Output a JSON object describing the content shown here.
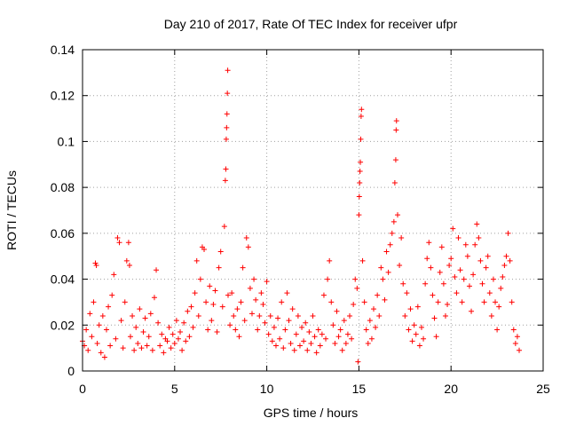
{
  "chart_data": {
    "type": "scatter",
    "title": "Day 210 of 2017, Rate Of TEC Index for receiver ufpr",
    "xlabel": "GPS time / hours",
    "ylabel": "ROTI / TECUs",
    "xlim": [
      0,
      25
    ],
    "ylim": [
      0,
      0.14
    ],
    "x_ticks": [
      0,
      5,
      10,
      15,
      20,
      25
    ],
    "x_tick_labels": [
      "0",
      "5",
      "10",
      "15",
      "20",
      "25"
    ],
    "y_ticks": [
      0,
      0.02,
      0.04,
      0.06,
      0.08,
      0.1,
      0.12,
      0.14
    ],
    "y_tick_labels": [
      "0",
      "0.02",
      "0.04",
      "0.06",
      "0.08",
      "0.1",
      "0.12",
      "0.14"
    ],
    "grid": true,
    "marker": "+",
    "color": "#ff0000",
    "series": [
      {
        "name": "ROTI",
        "points": [
          [
            0.0,
            0.013
          ],
          [
            0.1,
            0.011
          ],
          [
            0.2,
            0.018
          ],
          [
            0.3,
            0.009
          ],
          [
            0.4,
            0.025
          ],
          [
            0.5,
            0.015
          ],
          [
            0.6,
            0.03
          ],
          [
            0.7,
            0.047
          ],
          [
            0.75,
            0.046
          ],
          [
            0.8,
            0.012
          ],
          [
            0.9,
            0.02
          ],
          [
            1.0,
            0.008
          ],
          [
            1.1,
            0.024
          ],
          [
            1.2,
            0.006
          ],
          [
            1.3,
            0.018
          ],
          [
            1.4,
            0.028
          ],
          [
            1.5,
            0.011
          ],
          [
            1.6,
            0.033
          ],
          [
            1.7,
            0.042
          ],
          [
            1.8,
            0.014
          ],
          [
            1.9,
            0.058
          ],
          [
            2.0,
            0.056
          ],
          [
            2.1,
            0.022
          ],
          [
            2.2,
            0.01
          ],
          [
            2.3,
            0.03
          ],
          [
            2.4,
            0.048
          ],
          [
            2.5,
            0.056
          ],
          [
            2.55,
            0.046
          ],
          [
            2.6,
            0.015
          ],
          [
            2.7,
            0.024
          ],
          [
            2.8,
            0.009
          ],
          [
            2.9,
            0.019
          ],
          [
            3.0,
            0.012
          ],
          [
            3.1,
            0.027
          ],
          [
            3.2,
            0.01
          ],
          [
            3.3,
            0.017
          ],
          [
            3.4,
            0.023
          ],
          [
            3.5,
            0.011
          ],
          [
            3.6,
            0.015
          ],
          [
            3.7,
            0.025
          ],
          [
            3.8,
            0.009
          ],
          [
            3.9,
            0.032
          ],
          [
            4.0,
            0.044
          ],
          [
            4.1,
            0.021
          ],
          [
            4.2,
            0.011
          ],
          [
            4.3,
            0.016
          ],
          [
            4.4,
            0.008
          ],
          [
            4.5,
            0.014
          ],
          [
            4.6,
            0.013
          ],
          [
            4.7,
            0.019
          ],
          [
            4.8,
            0.01
          ],
          [
            4.9,
            0.016
          ],
          [
            5.0,
            0.012
          ],
          [
            5.1,
            0.022
          ],
          [
            5.2,
            0.014
          ],
          [
            5.3,
            0.017
          ],
          [
            5.4,
            0.009
          ],
          [
            5.5,
            0.021
          ],
          [
            5.6,
            0.013
          ],
          [
            5.7,
            0.026
          ],
          [
            5.8,
            0.015
          ],
          [
            5.9,
            0.028
          ],
          [
            6.0,
            0.019
          ],
          [
            6.1,
            0.034
          ],
          [
            6.2,
            0.048
          ],
          [
            6.3,
            0.024
          ],
          [
            6.4,
            0.04
          ],
          [
            6.5,
            0.054
          ],
          [
            6.6,
            0.053
          ],
          [
            6.7,
            0.03
          ],
          [
            6.8,
            0.018
          ],
          [
            6.9,
            0.037
          ],
          [
            7.0,
            0.022
          ],
          [
            7.1,
            0.029
          ],
          [
            7.2,
            0.035
          ],
          [
            7.3,
            0.017
          ],
          [
            7.4,
            0.045
          ],
          [
            7.5,
            0.052
          ],
          [
            7.6,
            0.028
          ],
          [
            7.7,
            0.063
          ],
          [
            7.75,
            0.083
          ],
          [
            7.78,
            0.088
          ],
          [
            7.8,
            0.101
          ],
          [
            7.82,
            0.106
          ],
          [
            7.84,
            0.112
          ],
          [
            7.86,
            0.121
          ],
          [
            7.88,
            0.131
          ],
          [
            7.9,
            0.033
          ],
          [
            8.0,
            0.02
          ],
          [
            8.1,
            0.034
          ],
          [
            8.2,
            0.024
          ],
          [
            8.3,
            0.018
          ],
          [
            8.4,
            0.027
          ],
          [
            8.5,
            0.015
          ],
          [
            8.6,
            0.03
          ],
          [
            8.7,
            0.045
          ],
          [
            8.8,
            0.022
          ],
          [
            8.9,
            0.058
          ],
          [
            9.0,
            0.054
          ],
          [
            9.1,
            0.036
          ],
          [
            9.2,
            0.025
          ],
          [
            9.3,
            0.04
          ],
          [
            9.4,
            0.031
          ],
          [
            9.5,
            0.018
          ],
          [
            9.6,
            0.024
          ],
          [
            9.7,
            0.034
          ],
          [
            9.8,
            0.029
          ],
          [
            9.9,
            0.021
          ],
          [
            10.0,
            0.039
          ],
          [
            10.1,
            0.016
          ],
          [
            10.2,
            0.024
          ],
          [
            10.3,
            0.013
          ],
          [
            10.4,
            0.019
          ],
          [
            10.5,
            0.011
          ],
          [
            10.6,
            0.023
          ],
          [
            10.7,
            0.014
          ],
          [
            10.8,
            0.03
          ],
          [
            10.9,
            0.01
          ],
          [
            11.0,
            0.018
          ],
          [
            11.1,
            0.034
          ],
          [
            11.2,
            0.022
          ],
          [
            11.3,
            0.012
          ],
          [
            11.4,
            0.027
          ],
          [
            11.5,
            0.009
          ],
          [
            11.6,
            0.016
          ],
          [
            11.7,
            0.024
          ],
          [
            11.8,
            0.011
          ],
          [
            11.9,
            0.019
          ],
          [
            12.0,
            0.013
          ],
          [
            12.1,
            0.021
          ],
          [
            12.2,
            0.009
          ],
          [
            12.3,
            0.017
          ],
          [
            12.4,
            0.012
          ],
          [
            12.5,
            0.024
          ],
          [
            12.6,
            0.015
          ],
          [
            12.7,
            0.008
          ],
          [
            12.8,
            0.018
          ],
          [
            12.9,
            0.011
          ],
          [
            13.0,
            0.016
          ],
          [
            13.1,
            0.033
          ],
          [
            13.2,
            0.014
          ],
          [
            13.3,
            0.04
          ],
          [
            13.4,
            0.048
          ],
          [
            13.5,
            0.03
          ],
          [
            13.6,
            0.02
          ],
          [
            13.7,
            0.012
          ],
          [
            13.8,
            0.026
          ],
          [
            13.9,
            0.015
          ],
          [
            14.0,
            0.018
          ],
          [
            14.1,
            0.009
          ],
          [
            14.2,
            0.022
          ],
          [
            14.3,
            0.012
          ],
          [
            14.4,
            0.016
          ],
          [
            14.5,
            0.024
          ],
          [
            14.6,
            0.014
          ],
          [
            14.7,
            0.029
          ],
          [
            14.8,
            0.04
          ],
          [
            14.9,
            0.036
          ],
          [
            14.95,
            0.004
          ],
          [
            15.0,
            0.068
          ],
          [
            15.02,
            0.076
          ],
          [
            15.04,
            0.082
          ],
          [
            15.06,
            0.087
          ],
          [
            15.08,
            0.091
          ],
          [
            15.1,
            0.101
          ],
          [
            15.12,
            0.111
          ],
          [
            15.14,
            0.114
          ],
          [
            15.2,
            0.048
          ],
          [
            15.3,
            0.03
          ],
          [
            15.4,
            0.018
          ],
          [
            15.5,
            0.012
          ],
          [
            15.6,
            0.022
          ],
          [
            15.7,
            0.014
          ],
          [
            15.8,
            0.027
          ],
          [
            15.9,
            0.019
          ],
          [
            16.0,
            0.033
          ],
          [
            16.1,
            0.024
          ],
          [
            16.2,
            0.045
          ],
          [
            16.3,
            0.04
          ],
          [
            16.4,
            0.031
          ],
          [
            16.5,
            0.052
          ],
          [
            16.6,
            0.043
          ],
          [
            16.7,
            0.055
          ],
          [
            16.8,
            0.06
          ],
          [
            16.9,
            0.065
          ],
          [
            16.95,
            0.082
          ],
          [
            17.0,
            0.092
          ],
          [
            17.02,
            0.105
          ],
          [
            17.04,
            0.109
          ],
          [
            17.1,
            0.068
          ],
          [
            17.2,
            0.046
          ],
          [
            17.3,
            0.058
          ],
          [
            17.4,
            0.038
          ],
          [
            17.5,
            0.024
          ],
          [
            17.6,
            0.034
          ],
          [
            17.7,
            0.018
          ],
          [
            17.8,
            0.027
          ],
          [
            17.9,
            0.013
          ],
          [
            18.0,
            0.02
          ],
          [
            18.1,
            0.016
          ],
          [
            18.2,
            0.028
          ],
          [
            18.3,
            0.011
          ],
          [
            18.4,
            0.019
          ],
          [
            18.5,
            0.014
          ],
          [
            18.6,
            0.038
          ],
          [
            18.7,
            0.049
          ],
          [
            18.8,
            0.056
          ],
          [
            18.9,
            0.045
          ],
          [
            19.0,
            0.033
          ],
          [
            19.1,
            0.023
          ],
          [
            19.2,
            0.015
          ],
          [
            19.3,
            0.03
          ],
          [
            19.4,
            0.043
          ],
          [
            19.5,
            0.054
          ],
          [
            19.6,
            0.038
          ],
          [
            19.7,
            0.024
          ],
          [
            19.8,
            0.029
          ],
          [
            19.9,
            0.046
          ],
          [
            20.0,
            0.049
          ],
          [
            20.1,
            0.062
          ],
          [
            20.2,
            0.041
          ],
          [
            20.3,
            0.034
          ],
          [
            20.4,
            0.058
          ],
          [
            20.5,
            0.044
          ],
          [
            20.6,
            0.03
          ],
          [
            20.7,
            0.04
          ],
          [
            20.8,
            0.055
          ],
          [
            20.9,
            0.05
          ],
          [
            21.0,
            0.037
          ],
          [
            21.1,
            0.026
          ],
          [
            21.2,
            0.042
          ],
          [
            21.3,
            0.055
          ],
          [
            21.4,
            0.064
          ],
          [
            21.5,
            0.058
          ],
          [
            21.6,
            0.048
          ],
          [
            21.7,
            0.038
          ],
          [
            21.8,
            0.03
          ],
          [
            21.9,
            0.045
          ],
          [
            22.0,
            0.05
          ],
          [
            22.1,
            0.034
          ],
          [
            22.2,
            0.024
          ],
          [
            22.3,
            0.04
          ],
          [
            22.4,
            0.03
          ],
          [
            22.5,
            0.018
          ],
          [
            22.6,
            0.028
          ],
          [
            22.7,
            0.036
          ],
          [
            22.8,
            0.041
          ],
          [
            22.9,
            0.046
          ],
          [
            23.0,
            0.05
          ],
          [
            23.1,
            0.06
          ],
          [
            23.2,
            0.048
          ],
          [
            23.3,
            0.03
          ],
          [
            23.4,
            0.018
          ],
          [
            23.5,
            0.012
          ],
          [
            23.6,
            0.015
          ],
          [
            23.7,
            0.009
          ]
        ]
      }
    ]
  }
}
